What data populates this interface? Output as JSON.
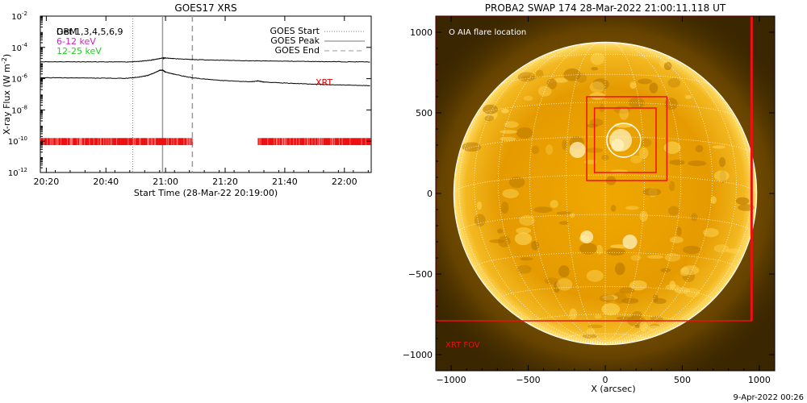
{
  "colors": {
    "text": "#000000",
    "magenta": "#cc22cc",
    "green": "#22cc22",
    "red": "#ee1111",
    "xrt_red": "#dd0000",
    "sun_dark": "#3a2500",
    "sun_mid": "#e6a000",
    "sun_bright": "#ffd24a",
    "grid": "#ffffff"
  },
  "chart_data": [
    {
      "type": "line",
      "title": "GOES17 XRS",
      "xlabel": "Start Time (28-Mar-22 20:19:00)",
      "ylabel": "X-ray Flux (W m",
      "ylabel_exp": "-2",
      "ylabel_close": ")",
      "y_scale": "log",
      "xlim": [
        -1,
        110
      ],
      "ylim_exp": [
        -12,
        -2
      ],
      "x_ticks": [
        {
          "pos": 1,
          "label": "20:20"
        },
        {
          "pos": 21,
          "label": "20:40"
        },
        {
          "pos": 41,
          "label": "21:00"
        },
        {
          "pos": 61,
          "label": "21:20"
        },
        {
          "pos": 81,
          "label": "21:40"
        },
        {
          "pos": 101,
          "label": "22:00"
        }
      ],
      "y_ticks": [
        {
          "exp": -12,
          "label": "10",
          "sup": "-12"
        },
        {
          "exp": -10,
          "label": "10",
          "sup": "-10"
        },
        {
          "exp": -8,
          "label": "10",
          "sup": "-8"
        },
        {
          "exp": -6,
          "label": "10",
          "sup": "-6"
        },
        {
          "exp": -4,
          "label": "10",
          "sup": "-4"
        },
        {
          "exp": -2,
          "label": "10",
          "sup": "-2"
        }
      ],
      "left_legend": [
        {
          "text": "Det 1,3,4,5,6,9",
          "overlay": "GBM",
          "color": "#000000"
        },
        {
          "text": "6-12 keV",
          "color": "#cc22cc"
        },
        {
          "text": "12-25 keV",
          "color": "#22cc22"
        }
      ],
      "right_legend": [
        {
          "label": "GOES Start",
          "style": "dotted"
        },
        {
          "label": "GOES Peak",
          "style": "solid"
        },
        {
          "label": "GOES End",
          "style": "dashed"
        }
      ],
      "vlines": {
        "start": 30,
        "peak": 40,
        "end": 50
      },
      "series": [
        {
          "x": [
            -1,
            10,
            20,
            28,
            32,
            36,
            38,
            40,
            41,
            44,
            50,
            60,
            70,
            80,
            90,
            100,
            110
          ],
          "y_exp": [
            -4.92,
            -4.92,
            -4.93,
            -4.93,
            -4.9,
            -4.82,
            -4.75,
            -4.68,
            -4.68,
            -4.72,
            -4.78,
            -4.82,
            -4.86,
            -4.88,
            -4.9,
            -4.92,
            -4.93
          ]
        },
        {
          "x": [
            -1,
            10,
            20,
            28,
            32,
            35,
            37,
            39,
            40,
            41,
            44,
            50,
            60,
            70,
            72,
            74,
            80,
            90,
            100,
            110
          ],
          "y_exp": [
            -5.94,
            -5.95,
            -5.97,
            -5.98,
            -5.9,
            -5.8,
            -5.65,
            -5.47,
            -5.45,
            -5.58,
            -5.72,
            -5.95,
            -6.12,
            -6.2,
            -6.14,
            -6.22,
            -6.27,
            -6.35,
            -6.4,
            -6.45
          ]
        }
      ],
      "xrt_label": "XRT",
      "xrt_intervals": [
        [
          -1,
          50
        ],
        [
          72,
          110
        ]
      ]
    },
    {
      "type": "image",
      "title": "PROBA2 SWAP 174 28-Mar-2022 21:00:11.118 UT",
      "xlabel": "X (arcsec)",
      "xlim": [
        -1100,
        1100
      ],
      "ylim": [
        -1100,
        1100
      ],
      "x_ticks": [
        {
          "v": -1000,
          "label": "−1000"
        },
        {
          "v": -500,
          "label": "−500"
        },
        {
          "v": 0,
          "label": "0"
        },
        {
          "v": 500,
          "label": "500"
        },
        {
          "v": 1000,
          "label": "1000"
        }
      ],
      "y_ticks": [
        {
          "v": 1000,
          "label": "1000"
        },
        {
          "v": 500,
          "label": "500"
        },
        {
          "v": 0,
          "label": "0"
        },
        {
          "v": -500,
          "label": "−500"
        },
        {
          "v": -1000,
          "label": "−1000"
        }
      ],
      "solar_radius": 960,
      "aia_label": "O AIA flare location",
      "aia_circle": {
        "x": 120,
        "y": 330,
        "r": 110
      },
      "boxes": [
        {
          "x0": -120,
          "y0": 80,
          "x1": 400,
          "y1": 600
        },
        {
          "x0": -70,
          "y0": 130,
          "x1": 330,
          "y1": 530
        }
      ],
      "xrt_fov": {
        "x0": -1100,
        "y0": -790,
        "x1": 950,
        "y1": 1100
      },
      "xrt_fov_label": "XRT FOV"
    }
  ],
  "footer": {
    "timestamp": "9-Apr-2022 00:26"
  }
}
